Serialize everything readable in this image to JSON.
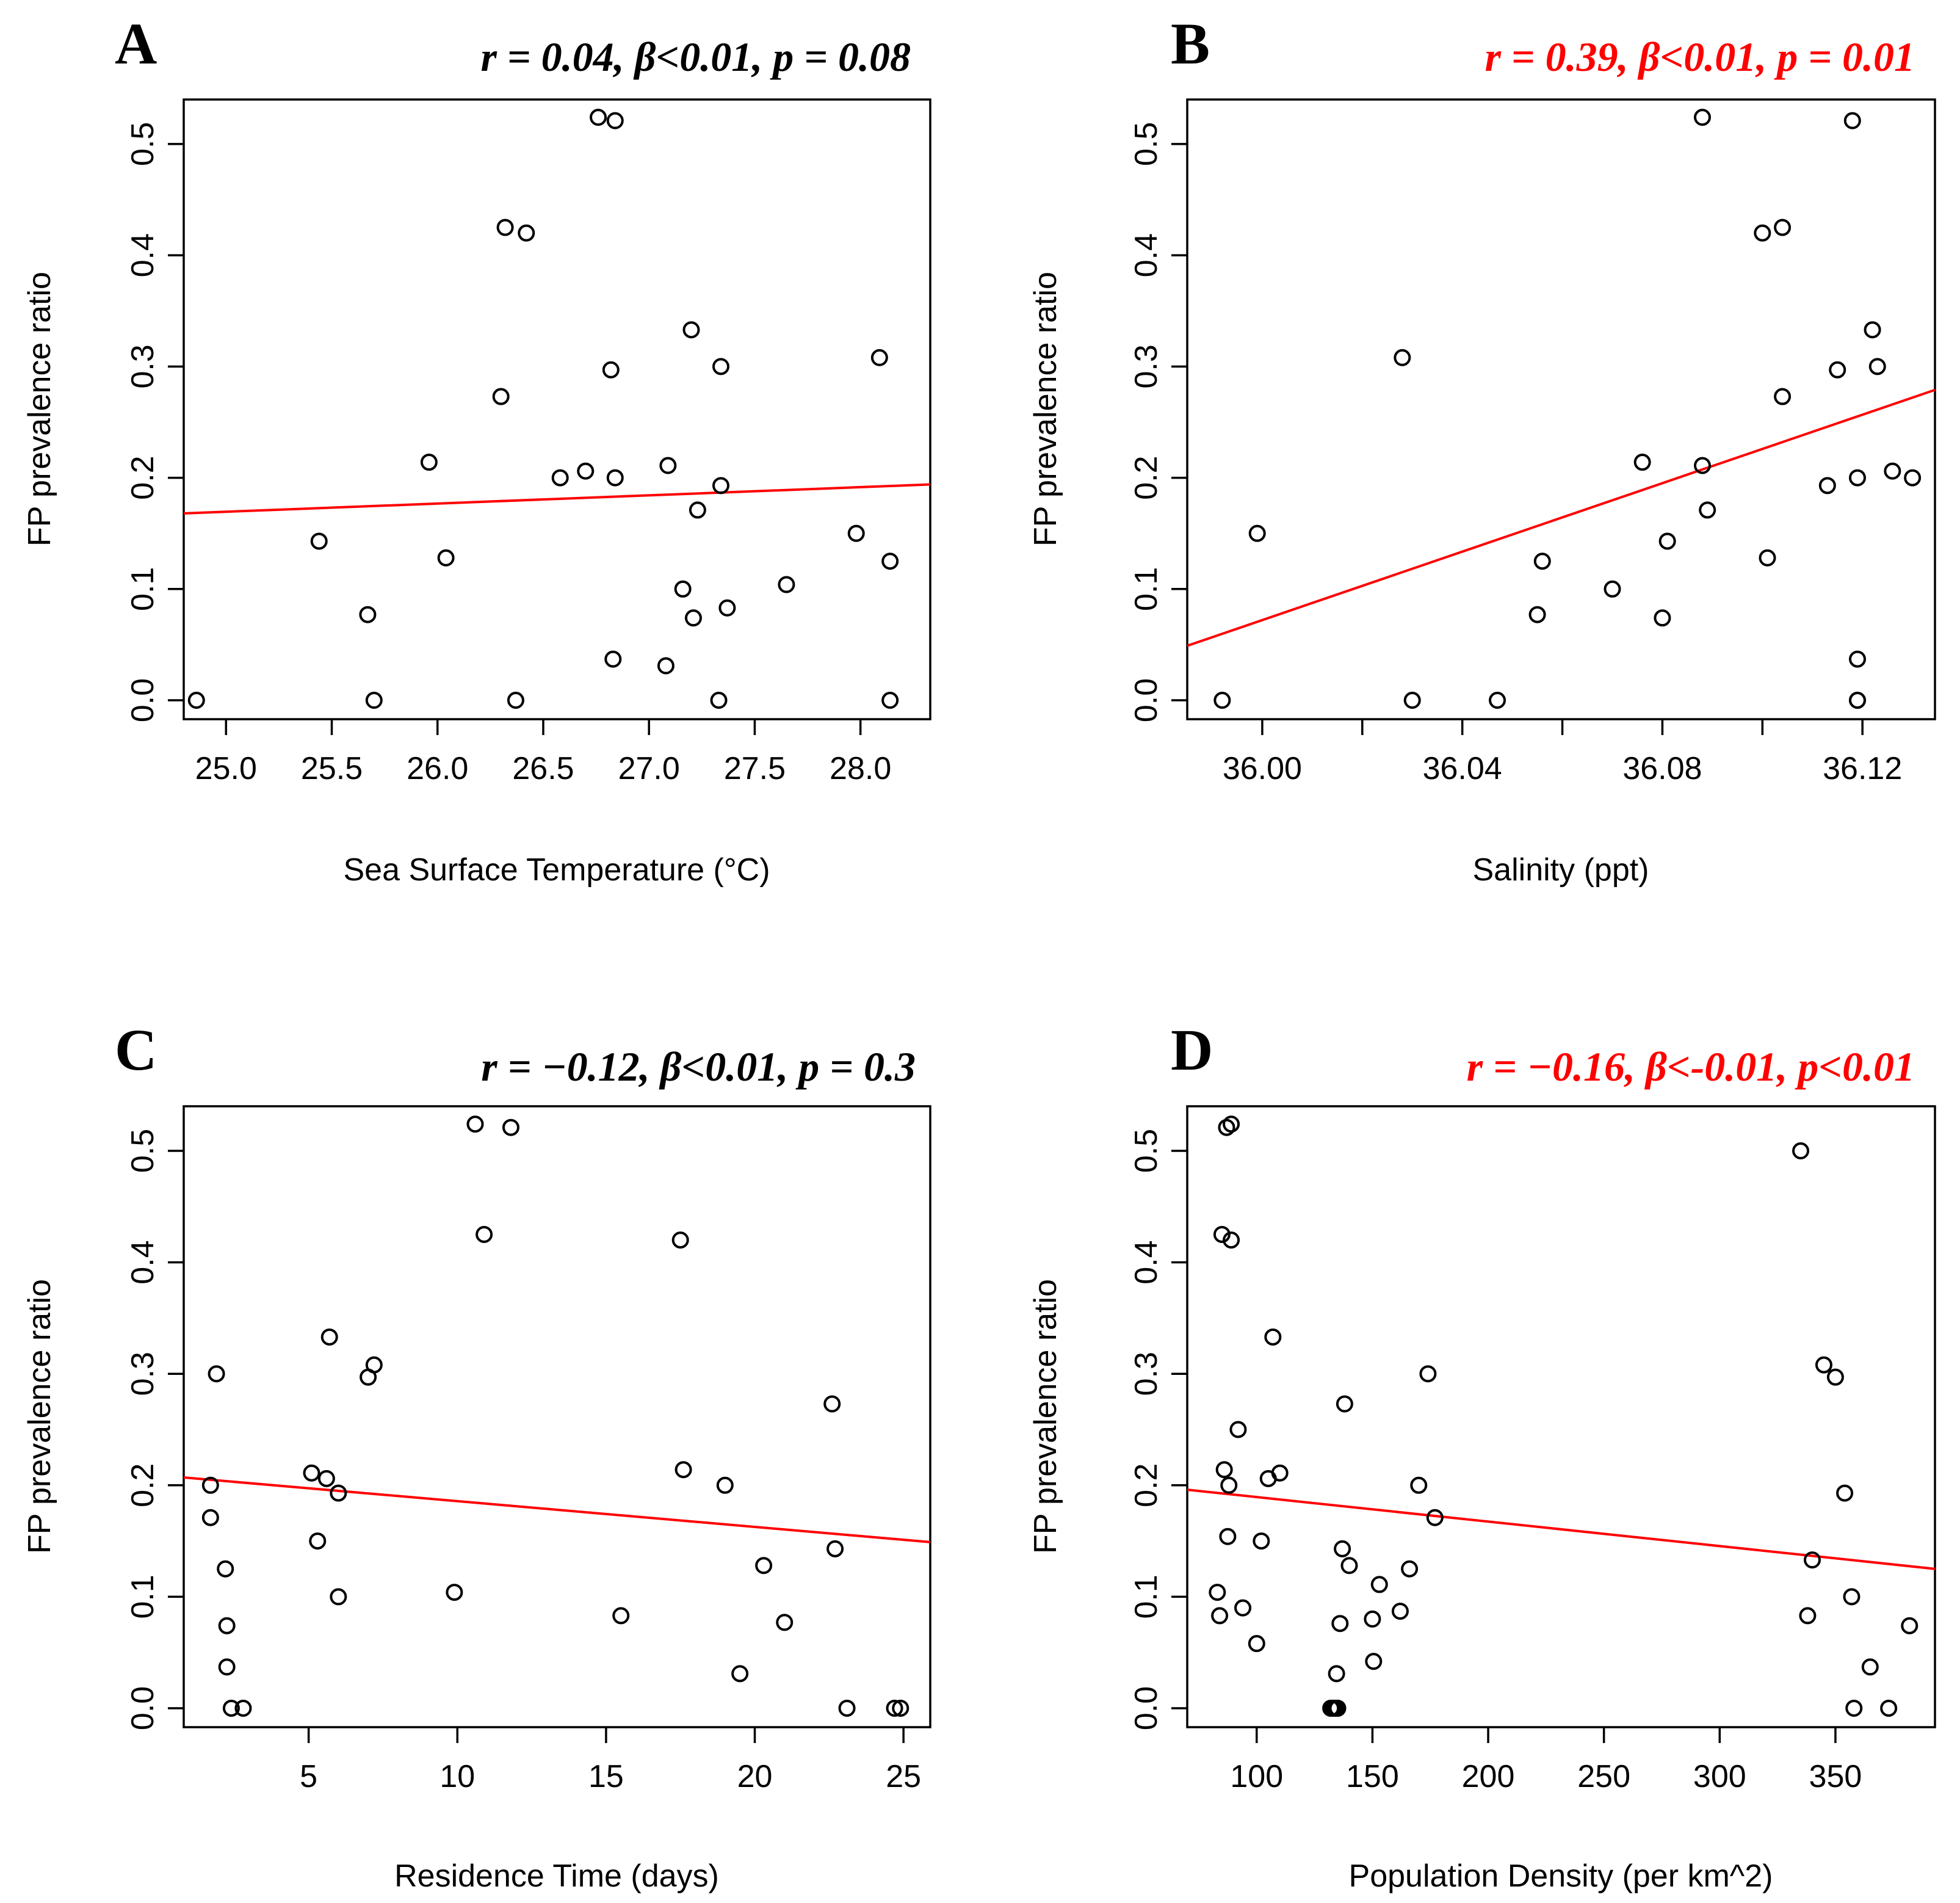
{
  "colors": {
    "significant": "#ff0000",
    "nonsignificant": "#000000",
    "fit_line": "#ff0000",
    "point": "#000000"
  },
  "chart_data": [
    {
      "type": "scatter",
      "panel": "A",
      "stats_text": "r = 0.04, β<0.01, p = 0.08",
      "stats_significant": false,
      "xlabel": "Sea Surface Temperature (°C)",
      "ylabel": "FP prevalence ratio",
      "xlim": [
        24.8,
        28.33
      ],
      "ylim": [
        -0.017,
        0.54
      ],
      "xticks": [
        25.0,
        25.5,
        26.0,
        26.5,
        27.0,
        27.5,
        28.0
      ],
      "xtick_labels": [
        "25.0",
        "25.5",
        "26.0",
        "26.5",
        "27.0",
        "27.5",
        "28.0"
      ],
      "yticks": [
        0.0,
        0.1,
        0.2,
        0.3,
        0.4,
        0.5
      ],
      "ytick_labels": [
        "0.0",
        "0.1",
        "0.2",
        "0.3",
        "0.4",
        "0.5"
      ],
      "x": [
        24.86,
        25.44,
        25.67,
        25.7,
        25.96,
        26.04,
        26.3,
        26.32,
        26.37,
        26.42,
        26.58,
        26.7,
        26.76,
        26.82,
        26.83,
        26.84,
        26.84,
        27.08,
        27.09,
        27.16,
        27.2,
        27.21,
        27.23,
        27.33,
        27.34,
        27.34,
        27.37,
        27.65,
        27.98,
        28.09,
        28.14,
        28.14
      ],
      "y": [
        0.0,
        0.143,
        0.077,
        0.0,
        0.214,
        0.128,
        0.273,
        0.425,
        0.0,
        0.42,
        0.2,
        0.206,
        0.524,
        0.297,
        0.037,
        0.521,
        0.2,
        0.031,
        0.211,
        0.1,
        0.333,
        0.074,
        0.171,
        0.0,
        0.3,
        0.193,
        0.083,
        0.104,
        0.15,
        0.308,
        0.125,
        0.0
      ],
      "fit": {
        "x": [
          24.8,
          28.33
        ],
        "y": [
          0.168,
          0.194
        ]
      }
    },
    {
      "type": "scatter",
      "panel": "B",
      "stats_text": "r = 0.39, β<0.01, p = 0.01",
      "stats_significant": true,
      "xlabel": "Salinity (ppt)",
      "ylabel": "FP prevalence ratio",
      "xlim": [
        35.985,
        36.1345
      ],
      "ylim": [
        -0.017,
        0.54
      ],
      "xticks": [
        36.0,
        36.02,
        36.04,
        36.06,
        36.08,
        36.1,
        36.12
      ],
      "xtick_labels": [
        "36.00",
        "",
        "36.04",
        "",
        "36.08",
        "",
        "36.12"
      ],
      "yticks": [
        0.0,
        0.1,
        0.2,
        0.3,
        0.4,
        0.5
      ],
      "ytick_labels": [
        "0.0",
        "0.1",
        "0.2",
        "0.3",
        "0.4",
        "0.5"
      ],
      "x": [
        35.992,
        35.999,
        36.028,
        36.03,
        36.047,
        36.055,
        36.056,
        36.07,
        36.076,
        36.08,
        36.081,
        36.088,
        36.088,
        36.089,
        36.1,
        36.101,
        36.104,
        36.104,
        36.113,
        36.115,
        36.118,
        36.119,
        36.119,
        36.119,
        36.119,
        36.122,
        36.123,
        36.126,
        36.13
      ],
      "y": [
        0.0,
        0.15,
        0.308,
        0.0,
        0.0,
        0.077,
        0.125,
        0.1,
        0.214,
        0.074,
        0.143,
        0.524,
        0.211,
        0.171,
        0.42,
        0.128,
        0.425,
        0.273,
        0.193,
        0.297,
        0.521,
        0.2,
        0.037,
        0.0,
        0.0,
        0.333,
        0.3,
        0.206,
        0.2
      ],
      "fit": {
        "x": [
          35.985,
          36.1345
        ],
        "y": [
          0.049,
          0.279
        ]
      }
    },
    {
      "type": "scatter",
      "panel": "C",
      "stats_text": "r = −0.12, β<0.01, p = 0.3",
      "stats_significant": false,
      "xlabel": "Residence Time (days)",
      "ylabel": "FP prevalence ratio",
      "xlim": [
        0.8,
        25.9
      ],
      "ylim": [
        -0.017,
        0.54
      ],
      "xticks": [
        5,
        10,
        15,
        20,
        25
      ],
      "xtick_labels": [
        "5",
        "10",
        "15",
        "20",
        "25"
      ],
      "yticks": [
        0.0,
        0.1,
        0.2,
        0.3,
        0.4,
        0.5
      ],
      "ytick_labels": [
        "0.0",
        "0.1",
        "0.2",
        "0.3",
        "0.4",
        "0.5"
      ],
      "x": [
        1.7,
        1.7,
        1.9,
        2.2,
        2.25,
        2.25,
        2.4,
        2.8,
        5.1,
        5.3,
        5.6,
        5.7,
        6.0,
        6.0,
        7.0,
        7.2,
        9.9,
        10.6,
        10.9,
        11.8,
        15.5,
        17.5,
        17.6,
        19.0,
        19.5,
        20.3,
        21.0,
        22.6,
        22.7,
        23.1,
        24.7,
        24.9
      ],
      "y": [
        0.2,
        0.171,
        0.3,
        0.125,
        0.074,
        0.037,
        0.0,
        0.0,
        0.211,
        0.15,
        0.206,
        0.333,
        0.193,
        0.1,
        0.297,
        0.308,
        0.104,
        0.524,
        0.425,
        0.521,
        0.083,
        0.42,
        0.214,
        0.2,
        0.031,
        0.128,
        0.077,
        0.273,
        0.143,
        0.0,
        0.0,
        0.0
      ],
      "fit": {
        "x": [
          0.8,
          25.9
        ],
        "y": [
          0.207,
          0.149
        ]
      }
    },
    {
      "type": "scatter",
      "panel": "D",
      "stats_text": "r = −0.16, β<-0.01, p<0.01",
      "stats_significant": true,
      "xlabel": "Population Density (per km^2)",
      "ylabel": "FP prevalence ratio",
      "xlim": [
        70,
        393
      ],
      "ylim": [
        -0.017,
        0.54
      ],
      "xticks": [
        100,
        150,
        200,
        250,
        300,
        350
      ],
      "xtick_labels": [
        "100",
        "150",
        "200",
        "250",
        "300",
        "350"
      ],
      "yticks": [
        0.0,
        0.1,
        0.2,
        0.3,
        0.4,
        0.5
      ],
      "ytick_labels": [
        "0.0",
        "0.1",
        "0.2",
        "0.3",
        "0.4",
        "0.5"
      ],
      "x": [
        83,
        84,
        85,
        86,
        87,
        87.5,
        88,
        89,
        89,
        92,
        94,
        100,
        102,
        105,
        107,
        110,
        132,
        133,
        134,
        134.5,
        135,
        136,
        137,
        138,
        140,
        150,
        150.5,
        153,
        162,
        166,
        170,
        174,
        177,
        335,
        338,
        340,
        345,
        350,
        354,
        357,
        358,
        365,
        373,
        382
      ],
      "y": [
        0.104,
        0.083,
        0.425,
        0.214,
        0.521,
        0.154,
        0.2,
        0.524,
        0.42,
        0.25,
        0.09,
        0.058,
        0.15,
        0.206,
        0.333,
        0.211,
        0.0,
        0.0,
        0.0,
        0.031,
        0.0,
        0.076,
        0.143,
        0.273,
        0.128,
        0.08,
        0.042,
        0.111,
        0.087,
        0.125,
        0.2,
        0.3,
        0.171,
        0.5,
        0.083,
        0.133,
        0.308,
        0.297,
        0.193,
        0.1,
        0.0,
        0.037,
        0.0,
        0.074
      ],
      "fit": {
        "x": [
          70,
          393
        ],
        "y": [
          0.196,
          0.125
        ]
      }
    }
  ]
}
